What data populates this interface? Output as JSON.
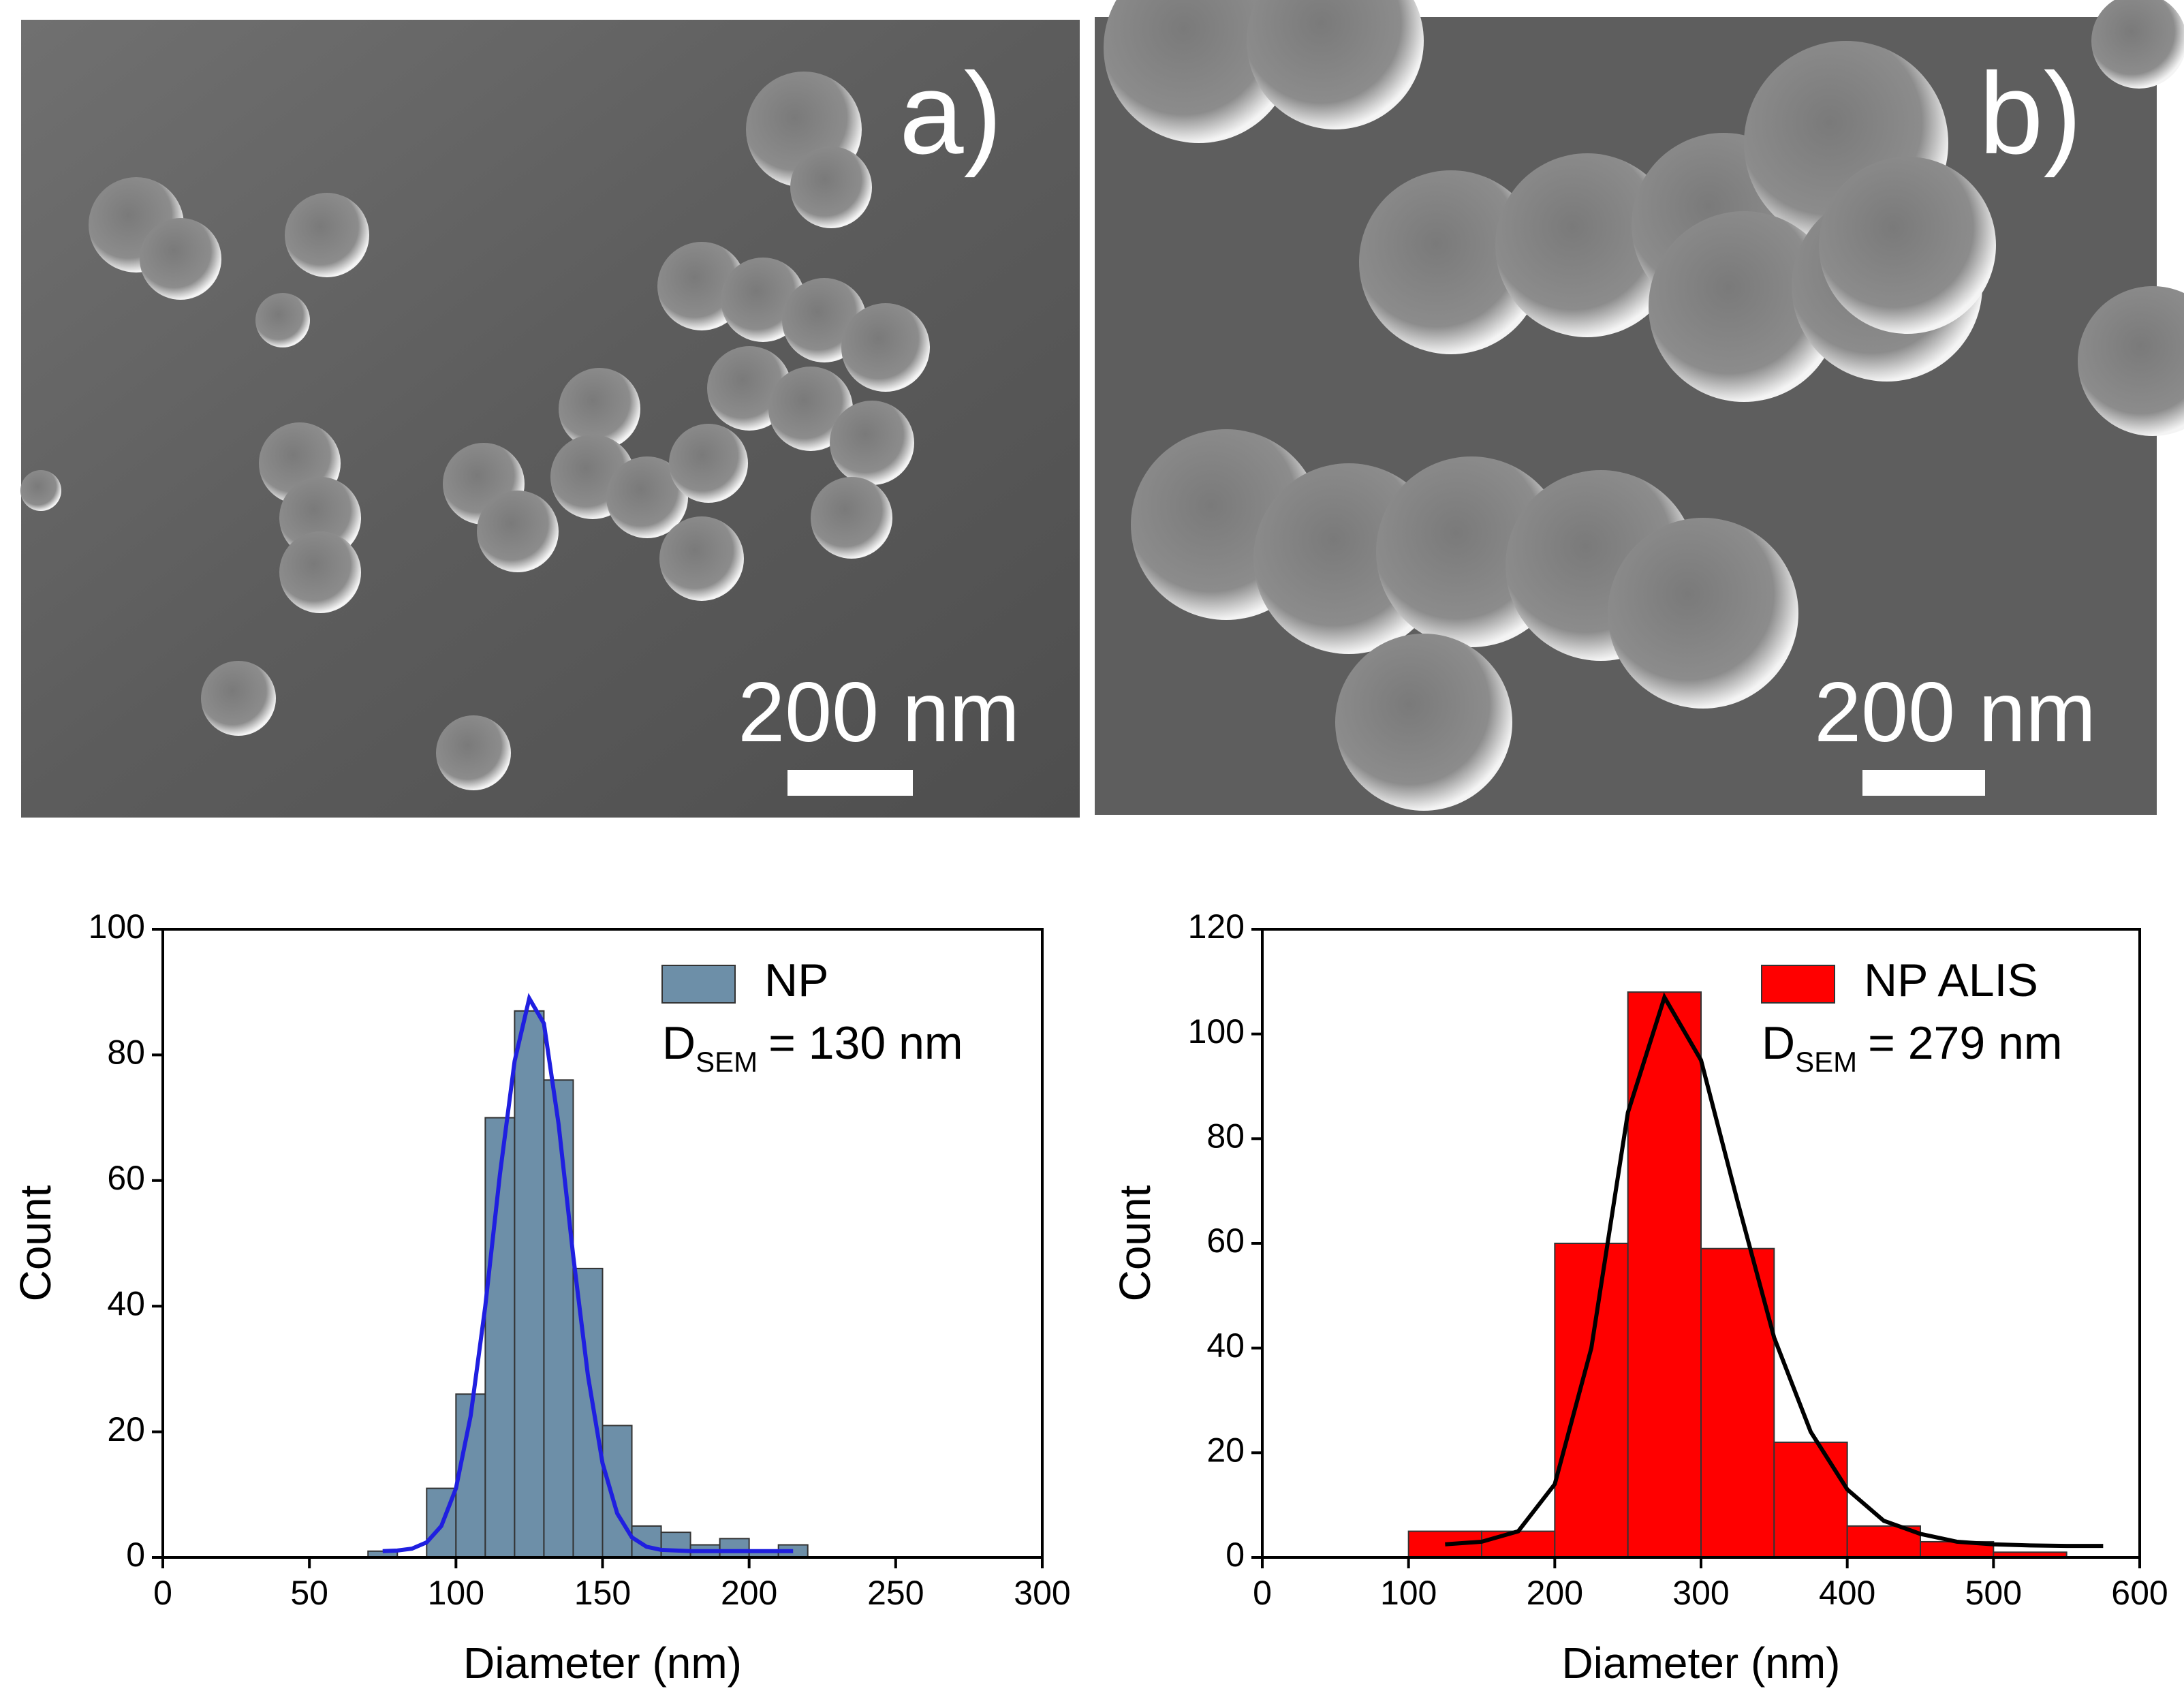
{
  "panels": [
    {
      "label": "a)",
      "scale_bar": "200 nm"
    },
    {
      "label": "b)",
      "scale_bar": "200 nm"
    }
  ],
  "chart_data": [
    {
      "type": "histogram",
      "name": "NP",
      "color": "#6d8fa8",
      "annotation": {
        "text": "D",
        "subscript": "SEM",
        "suffix": "= 130 nm"
      },
      "x_label": "Diameter (nm)",
      "y_label": "Count",
      "bins": [
        70,
        80,
        90,
        100,
        110,
        120,
        130,
        140,
        150,
        160,
        170,
        180,
        190,
        200,
        210,
        220
      ],
      "values": [
        1,
        0,
        11,
        26,
        70,
        87,
        76,
        46,
        21,
        5,
        4,
        2,
        3,
        1,
        2
      ],
      "fit": {
        "color": "#1f1fe0",
        "x": [
          75,
          80,
          85,
          90,
          95,
          100,
          105,
          110,
          115,
          120,
          125,
          130,
          135,
          140,
          145,
          150,
          155,
          160,
          165,
          170,
          180,
          190,
          200,
          215
        ],
        "values": [
          1,
          1.1,
          1.4,
          2.4,
          5,
          11,
          22.5,
          40,
          61,
          79,
          89,
          85,
          69,
          48,
          29,
          15,
          7,
          3.2,
          1.7,
          1.2,
          1,
          1,
          1,
          1
        ]
      },
      "xlim": [
        0,
        300
      ],
      "xticks": [
        0,
        50,
        100,
        150,
        200,
        250,
        300
      ],
      "ylim": [
        0,
        100
      ],
      "yticks": [
        0,
        20,
        40,
        60,
        80,
        100
      ]
    },
    {
      "type": "histogram",
      "name": "NP ALIS",
      "color": "#ff0000",
      "annotation": {
        "text": "D",
        "subscript": "SEM",
        "suffix": "= 279 nm"
      },
      "x_label": "Diameter (nm)",
      "y_label": "Count",
      "bins": [
        100,
        150,
        200,
        250,
        300,
        350,
        400,
        450,
        500,
        550
      ],
      "values": [
        5,
        5,
        60,
        108,
        59,
        22,
        6,
        3,
        1
      ],
      "fit": {
        "color": "#000000",
        "x": [
          125,
          150,
          175,
          200,
          225,
          250,
          275,
          300,
          325,
          350,
          375,
          400,
          425,
          450,
          475,
          500,
          525,
          550,
          575
        ],
        "values": [
          2.5,
          3,
          5,
          14,
          40,
          85,
          107,
          95,
          68,
          42,
          24,
          13,
          7,
          4.5,
          3,
          2.5,
          2.3,
          2.2,
          2.2
        ]
      },
      "xlim": [
        0,
        600
      ],
      "xticks": [
        0,
        100,
        200,
        300,
        400,
        500,
        600
      ],
      "ylim": [
        0,
        120
      ],
      "yticks": [
        0,
        20,
        40,
        60,
        80,
        100,
        120
      ]
    }
  ]
}
